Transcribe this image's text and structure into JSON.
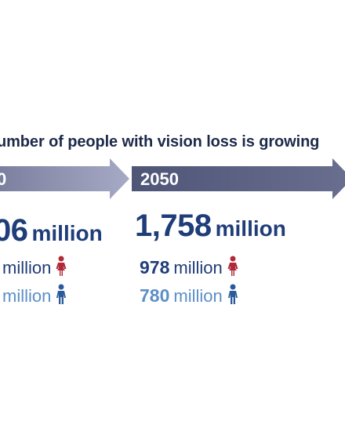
{
  "headline": "umber of people with vision loss is growing",
  "timeline": [
    {
      "year": "0",
      "total": "06",
      "total_unit": "million",
      "female_unit": "million",
      "male_unit": "million"
    },
    {
      "year": "2050",
      "total": "1,758",
      "total_unit": "million",
      "female": "978",
      "female_unit": "million",
      "male": "780",
      "male_unit": "million"
    }
  ],
  "colors": {
    "arrow_light": "#8f93b3",
    "arrow_dark": "#5d6384",
    "primary_blue": "#1f3d78",
    "light_blue": "#5b8fc7",
    "female_red": "#b02a3a",
    "male_blue": "#2a5a9a"
  },
  "icons": [
    "female-icon",
    "male-icon"
  ]
}
